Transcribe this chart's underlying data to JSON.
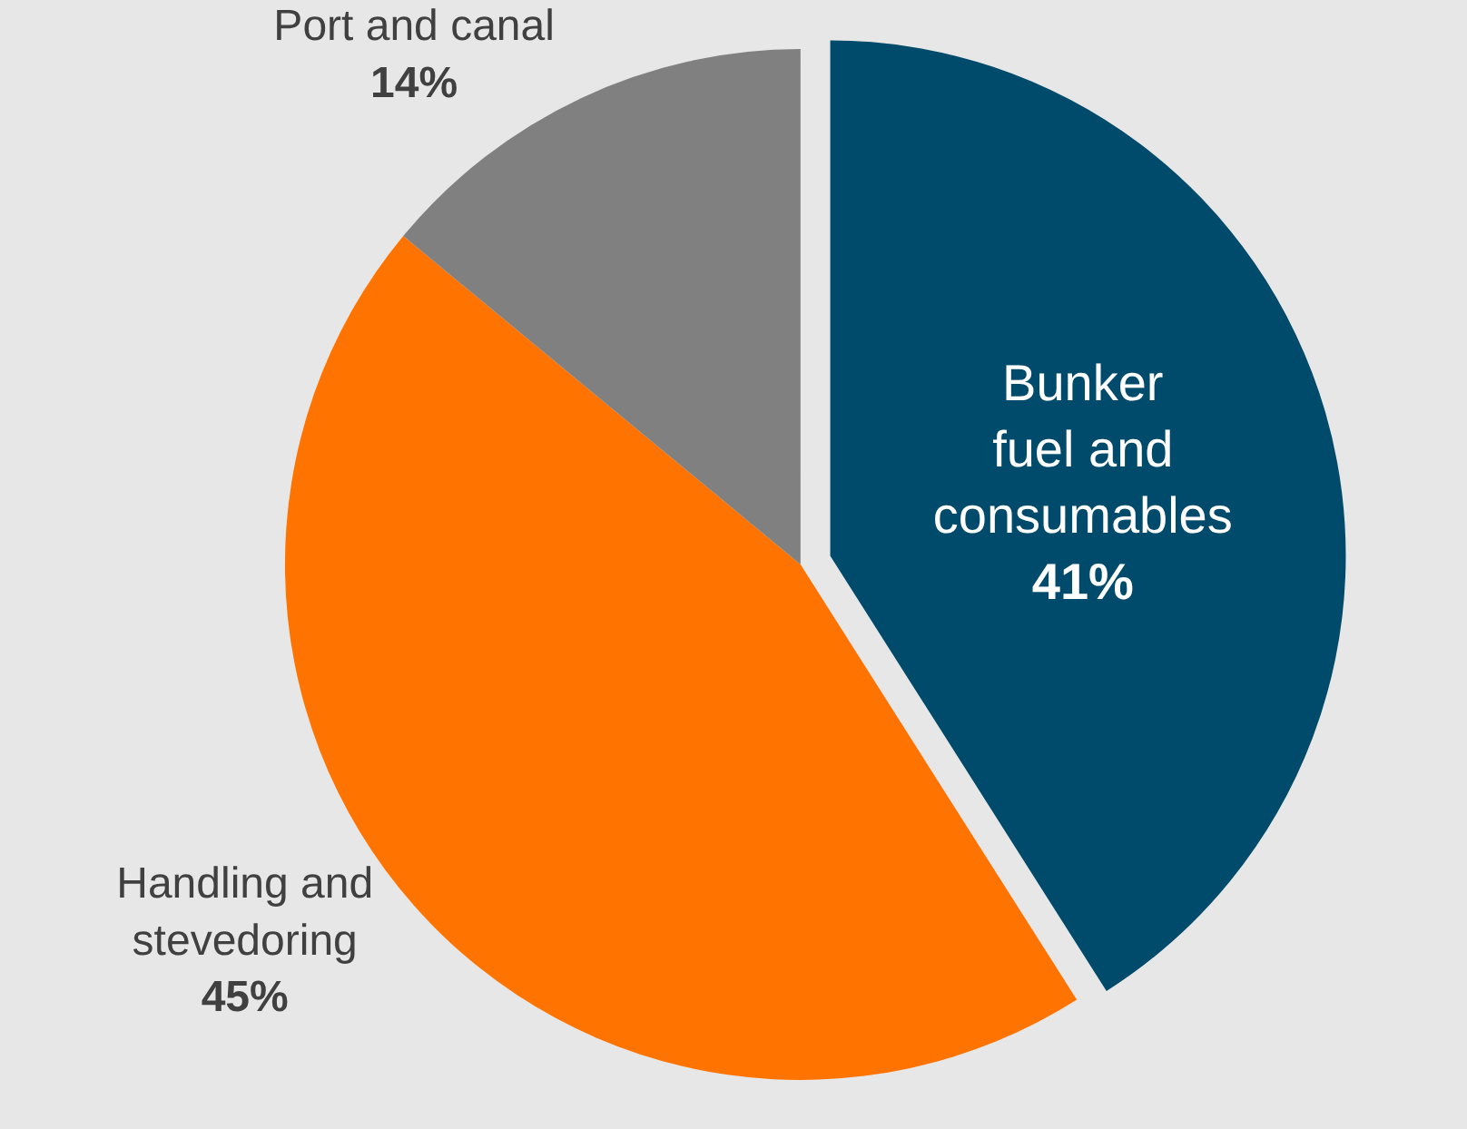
{
  "chart_data": {
    "type": "pie",
    "categories": [
      "Bunker fuel and consumables",
      "Handling and stevedoring",
      "Port and canal"
    ],
    "values": [
      41,
      45,
      14
    ],
    "value_labels": [
      "41%",
      "45%",
      "14%"
    ],
    "colors": [
      "#004b6b",
      "#ff7300",
      "#808080"
    ],
    "legend": false
  }
}
